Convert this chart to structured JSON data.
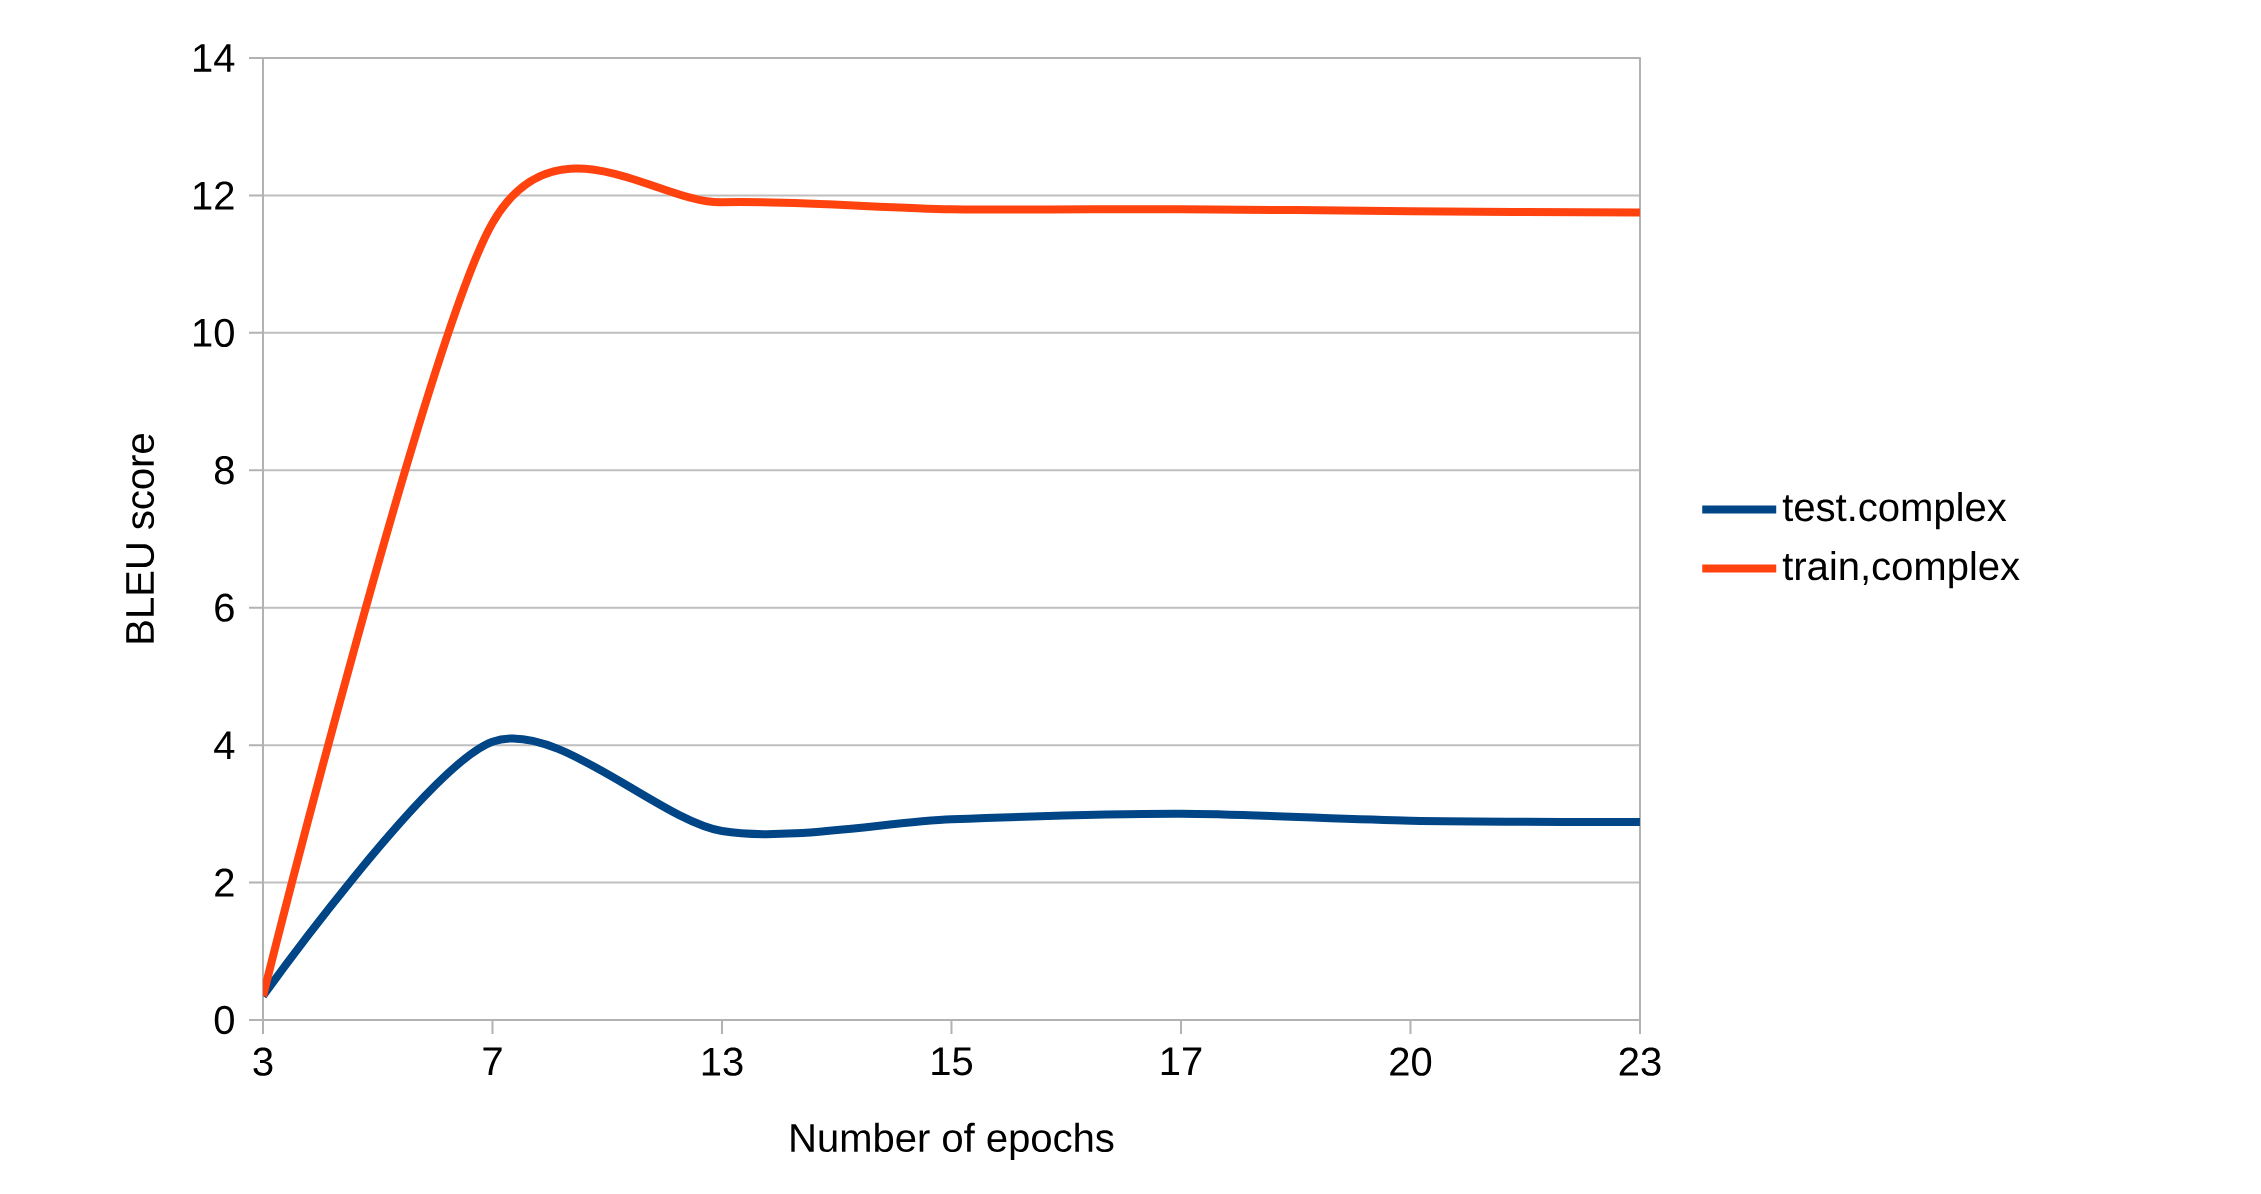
{
  "chart_data": {
    "type": "line",
    "xlabel": "Number of epochs",
    "ylabel": "BLEU score",
    "categories": [
      "3",
      "7",
      "13",
      "15",
      "17",
      "20",
      "23"
    ],
    "series": [
      {
        "name": "test.complex",
        "color": "#004586",
        "values": [
          0.35,
          4.05,
          2.75,
          2.92,
          3.0,
          2.9,
          2.88
        ]
      },
      {
        "name": "train,complex",
        "color": "#ff420e",
        "values": [
          0.35,
          11.6,
          11.9,
          11.8,
          11.8,
          11.77,
          11.75
        ]
      }
    ],
    "ylim": [
      0,
      14
    ],
    "yticks": [
      0,
      2,
      4,
      6,
      8,
      10,
      12,
      14
    ],
    "grid": "y",
    "legend": "right",
    "line_style": "solid",
    "marker": "none"
  }
}
